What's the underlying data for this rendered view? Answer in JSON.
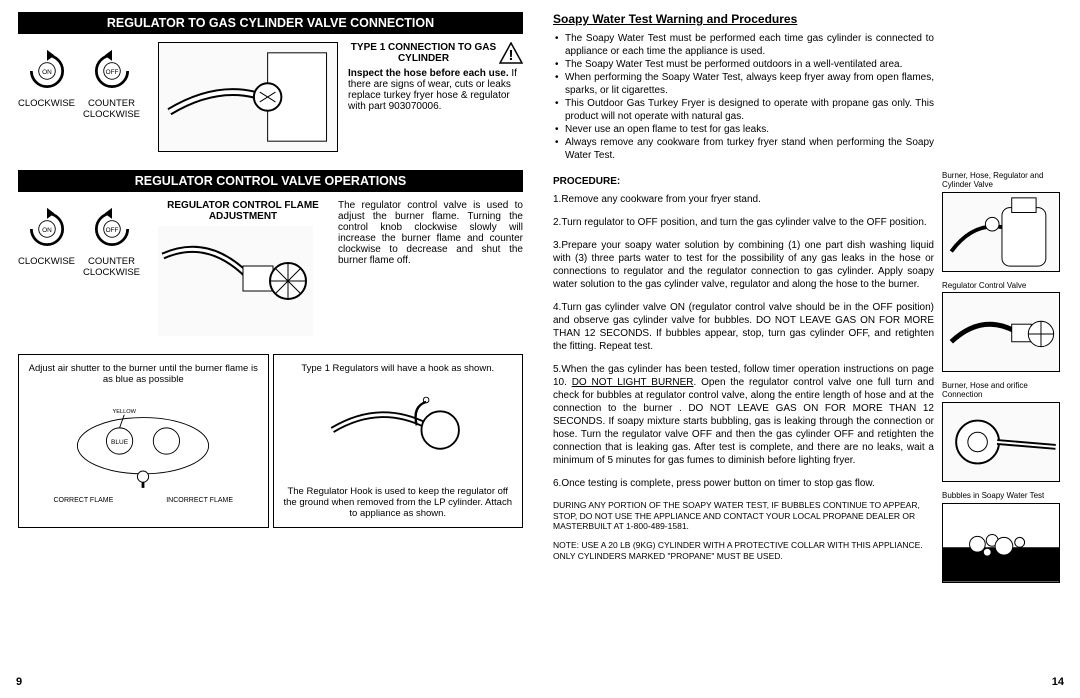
{
  "left": {
    "bar1": "REGULATOR TO GAS CYLINDER VALVE CONNECTION",
    "arrows": {
      "cw_label": "CLOCKWISE",
      "ccw_label": "COUNTER CLOCKWISE",
      "on": "ON",
      "off": "OFF"
    },
    "type1": {
      "header": "TYPE 1 CONNECTION TO GAS CYLINDER",
      "bold": "Inspect the hose before each use.",
      "body": "If there are signs of wear, cuts or leaks replace turkey fryer hose & regulator with part 903070006."
    },
    "bar2": "REGULATOR CONTROL VALVE OPERATIONS",
    "regctrl": {
      "header": "REGULATOR CONTROL FLAME ADJUSTMENT",
      "body": "The regulator control valve is used to adjust the burner flame. Turning the control knob clockwise slowly will increase the burner flame and counter clockwise to decrease and shut the burner flame off."
    },
    "boxA": {
      "top": "Adjust air shutter to the burner until the burner flame is as blue as possible",
      "yellow": "YELLOW",
      "blue": "BLUE",
      "correct": "CORRECT FLAME",
      "incorrect": "INCORRECT FLAME"
    },
    "boxB": {
      "top": "Type 1 Regulators will have a hook as shown.",
      "bottom": "The Regulator Hook is used to keep the regulator off the ground when removed from the LP cylinder. Attach to appliance as shown."
    },
    "page": "9"
  },
  "right": {
    "title": "Soapy Water Test Warning and Procedures",
    "bullets": [
      "The Soapy Water Test must be performed each time gas cylinder is connected to appliance or each time the appliance is used.",
      "The Soapy Water Test must be performed outdoors in a well-ventilated area.",
      "When performing the Soapy Water Test, always keep fryer away from open flames, sparks, or lit cigarettes.",
      "This Outdoor Gas Turkey Fryer is designed to operate with propane gas only.  This product will not operate with natural gas.",
      "Never use an open flame to test for gas leaks.",
      "Always remove any cookware from turkey fryer stand when performing the Soapy Water Test."
    ],
    "proc_header": "PROCEDURE:",
    "steps": [
      "Remove any cookware from your fryer stand.",
      "Turn regulator to OFF position, and turn the gas cylinder valve to the OFF position.",
      "Prepare your soapy water solution by combining (1) one part dish washing liquid with (3) three parts water to test for the possibility of any gas leaks in the hose or connections to regulator and the regulator connection to gas cylinder. Apply soapy water solution to the gas cylinder valve, regulator and along the hose to the burner.",
      "Turn gas cylinder valve ON (regulator control valve should be in  the OFF position) and observe gas cylinder valve for  bubbles.  DO NOT LEAVE GAS ON FOR MORE THAN 12 SECONDS.  If bubbles appear, stop, turn gas cylinder OFF, and  retighten the fitting.   Repeat test.",
      "When the gas cylinder has been tested, follow timer operation instructions on page 10. |DO NOT LIGHT BURNER|. Open the regulator control valve one full turn and check for bubbles at regulator control valve, along the  entire length of hose and at the connection to the burner .  DO NOT LEAVE GAS ON FOR MORE THAN 12 SECONDS. If soapy mixture starts bubbling, gas is leaking through the connection or hose.  Turn the regulator valve OFF and then the gas cylinder OFF and  retighten the connection that is leaking gas. After test  is complete, and there are no leaks, wait a minimum of 5 minutes for gas fumes to diminish before lighting fryer.",
      "Once testing is complete, press power button on timer to stop gas flow."
    ],
    "small1": "DURING ANY PORTION OF THE SOAPY WATER TEST, IF BUBBLES CONTINUE TO APPEAR, STOP, DO NOT USE THE APPLIANCE AND CONTACT YOUR LOCAL PROPANE DEALER OR MASTERBUILT  AT 1-800-489-1581.",
    "small2": "NOTE:  USE A 20 LB (9KG) CYLINDER WITH A PROTECTIVE COLLAR WITH THIS APPLIANCE. ONLY CYLINDERS MARKED \"PROPANE\"  MUST BE USED.",
    "figs": {
      "f1": "Burner, Hose, Regulator and Cylinder Valve",
      "f2": "Regulator Control Valve",
      "f3": "Burner, Hose and orifice Connection",
      "f4": "Bubbles in Soapy Water Test"
    },
    "page": "14"
  }
}
